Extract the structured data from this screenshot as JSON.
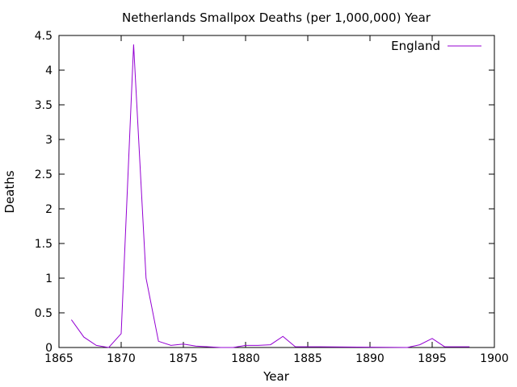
{
  "chart_data": {
    "type": "line",
    "title": "Netherlands Smallpox Deaths (per 1,000,000) Year",
    "xlabel": "Year",
    "ylabel": "Deaths",
    "xlim": [
      1865,
      1900
    ],
    "ylim": [
      0,
      4.5
    ],
    "xticks": [
      1865,
      1870,
      1875,
      1880,
      1885,
      1890,
      1895,
      1900
    ],
    "yticks": [
      0,
      0.5,
      1,
      1.5,
      2,
      2.5,
      3,
      3.5,
      4,
      4.5
    ],
    "grid": false,
    "legend_position": "top-right",
    "series": [
      {
        "name": "England",
        "color": "#9400d3",
        "x": [
          1866,
          1867,
          1868,
          1869,
          1870,
          1871,
          1872,
          1873,
          1874,
          1875,
          1876,
          1877,
          1878,
          1879,
          1880,
          1881,
          1882,
          1883,
          1884,
          1885,
          1886,
          1893,
          1894,
          1895,
          1896,
          1897,
          1898
        ],
        "y": [
          0.4,
          0.15,
          0.03,
          0.0,
          0.2,
          4.37,
          1.0,
          0.09,
          0.03,
          0.05,
          0.02,
          0.01,
          0.0,
          0.0,
          0.03,
          0.03,
          0.04,
          0.16,
          0.01,
          0.01,
          0.01,
          0.0,
          0.04,
          0.13,
          0.01,
          0.01,
          0.01
        ]
      }
    ]
  }
}
